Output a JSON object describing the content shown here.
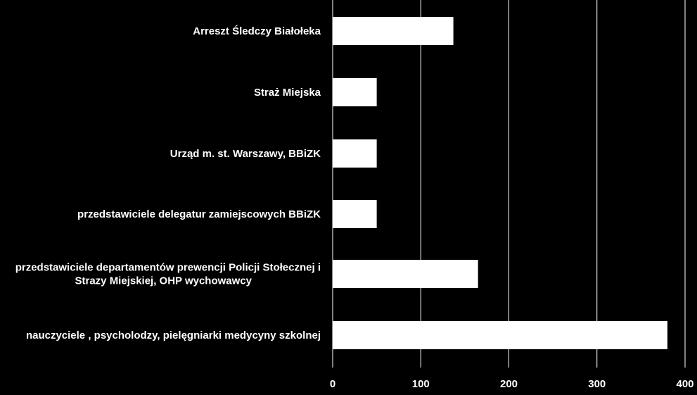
{
  "chart_data": {
    "type": "bar",
    "orientation": "horizontal",
    "categories": [
      "Arreszt Śledczy Białołeka",
      "Straż Miejska",
      "Urząd m. st. Warszawy, BBiZK",
      "przedstawiciele delegatur zamiejscowych  BBiZK",
      "przedstawiciele departamentów prewencji Policji Stołecznej i Strazy Miejskiej, OHP wychowawcy",
      "nauczyciele , psycholodzy, pielęgniarki medycyny szkolnej"
    ],
    "category_lines": [
      [
        "Arreszt Śledczy Białołeka"
      ],
      [
        "Straż Miejska"
      ],
      [
        "Urząd m. st. Warszawy, BBiZK"
      ],
      [
        "przedstawiciele delegatur zamiejscowych  BBiZK"
      ],
      [
        "przedstawiciele departamentów prewencji Policji Stołecznej i",
        "Strazy Miejskiej, OHP wychowawcy"
      ],
      [
        "nauczyciele , psycholodzy, pielęgniarki medycyny szkolnej"
      ]
    ],
    "values": [
      137,
      50,
      50,
      50,
      165,
      380
    ],
    "xlim": [
      0,
      400
    ],
    "ticks": [
      "0",
      "100",
      "200",
      "300",
      "400"
    ],
    "grid": true,
    "legend": "none",
    "colors": {
      "background": "#000000",
      "bar": "#ffffff",
      "grid": "#ffffff",
      "text": "#ffffff"
    }
  }
}
